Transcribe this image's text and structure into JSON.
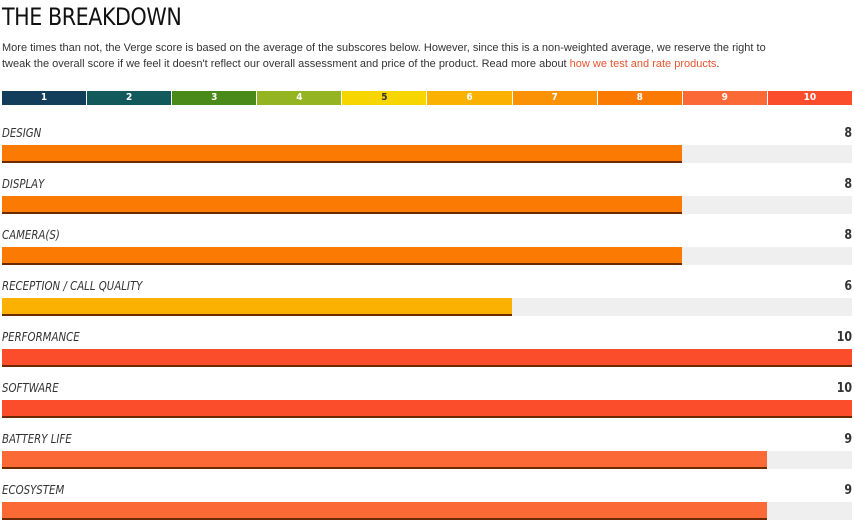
{
  "heading": "THE BREAKDOWN",
  "description": {
    "text": "More times than not, the Verge score is based on the average of the subscores below. However, since this is a non-weighted average, we reserve the right to tweak the overall score if we feel it doesn't reflect our overall assessment and price of the product. Read more about ",
    "link_text": "how we test and rate products",
    "trailing": "."
  },
  "scale": {
    "max": 10,
    "items": [
      {
        "label": "1",
        "color": "#123d5b",
        "text_color": "#ffffff"
      },
      {
        "label": "2",
        "color": "#11595a",
        "text_color": "#ffffff"
      },
      {
        "label": "3",
        "color": "#4a8a1b",
        "text_color": "#ffffff"
      },
      {
        "label": "4",
        "color": "#95b421",
        "text_color": "#ffffff"
      },
      {
        "label": "5",
        "color": "#f7d500",
        "text_color": "#333333"
      },
      {
        "label": "6",
        "color": "#fbb101",
        "text_color": "#ffffff"
      },
      {
        "label": "7",
        "color": "#fb9205",
        "text_color": "#ffffff"
      },
      {
        "label": "8",
        "color": "#fb7a03",
        "text_color": "#ffffff"
      },
      {
        "label": "9",
        "color": "#fb6936",
        "text_color": "#ffffff"
      },
      {
        "label": "10",
        "color": "#fb4d2c",
        "text_color": "#ffffff"
      }
    ]
  },
  "subscores": [
    {
      "label": "DESIGN",
      "score": "8",
      "value": 8,
      "color": "#fb7a03"
    },
    {
      "label": "DISPLAY",
      "score": "8",
      "value": 8,
      "color": "#fb7a03"
    },
    {
      "label": "CAMERA(S)",
      "score": "8",
      "value": 8,
      "color": "#fb7a03"
    },
    {
      "label": "RECEPTION / CALL QUALITY",
      "score": "6",
      "value": 6,
      "color": "#fbb101"
    },
    {
      "label": "PERFORMANCE",
      "score": "10",
      "value": 10,
      "color": "#fb4d2c"
    },
    {
      "label": "SOFTWARE",
      "score": "10",
      "value": 10,
      "color": "#fb4d2c"
    },
    {
      "label": "BATTERY LIFE",
      "score": "9",
      "value": 9,
      "color": "#fb6936"
    },
    {
      "label": "ECOSYSTEM",
      "score": "9",
      "value": 9,
      "color": "#fb6936"
    }
  ]
}
